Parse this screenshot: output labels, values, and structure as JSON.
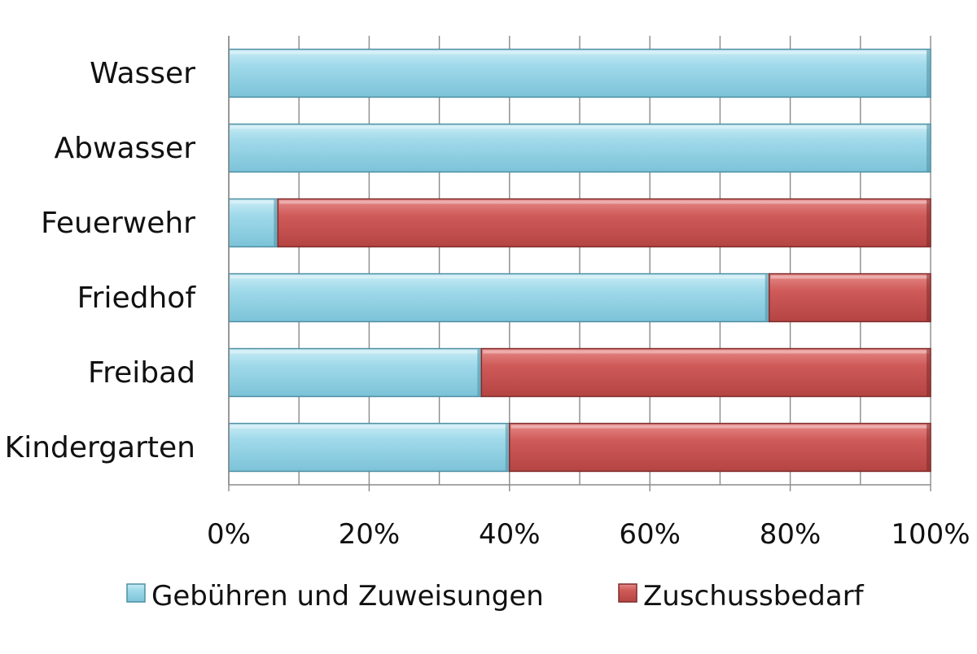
{
  "chart_data": {
    "type": "bar",
    "orientation": "horizontal",
    "stacking": "percent",
    "categories": [
      "Wasser",
      "Abwasser",
      "Feuerwehr",
      "Friedhof",
      "Freibad",
      "Kindergarten"
    ],
    "series": [
      {
        "name": "Gebühren und Zuweisungen",
        "values": [
          100,
          100,
          7,
          77,
          36,
          40
        ],
        "color": "#8fd0e3"
      },
      {
        "name": "Zuschussbedarf",
        "values": [
          0,
          0,
          93,
          23,
          64,
          60
        ],
        "color": "#c94f4e"
      }
    ],
    "xlim": [
      0,
      100
    ],
    "x_ticks": [
      "0%",
      "20%",
      "40%",
      "60%",
      "80%",
      "100%"
    ],
    "grid": true,
    "legend": "bottom",
    "title": "",
    "xlabel": "",
    "ylabel": ""
  }
}
